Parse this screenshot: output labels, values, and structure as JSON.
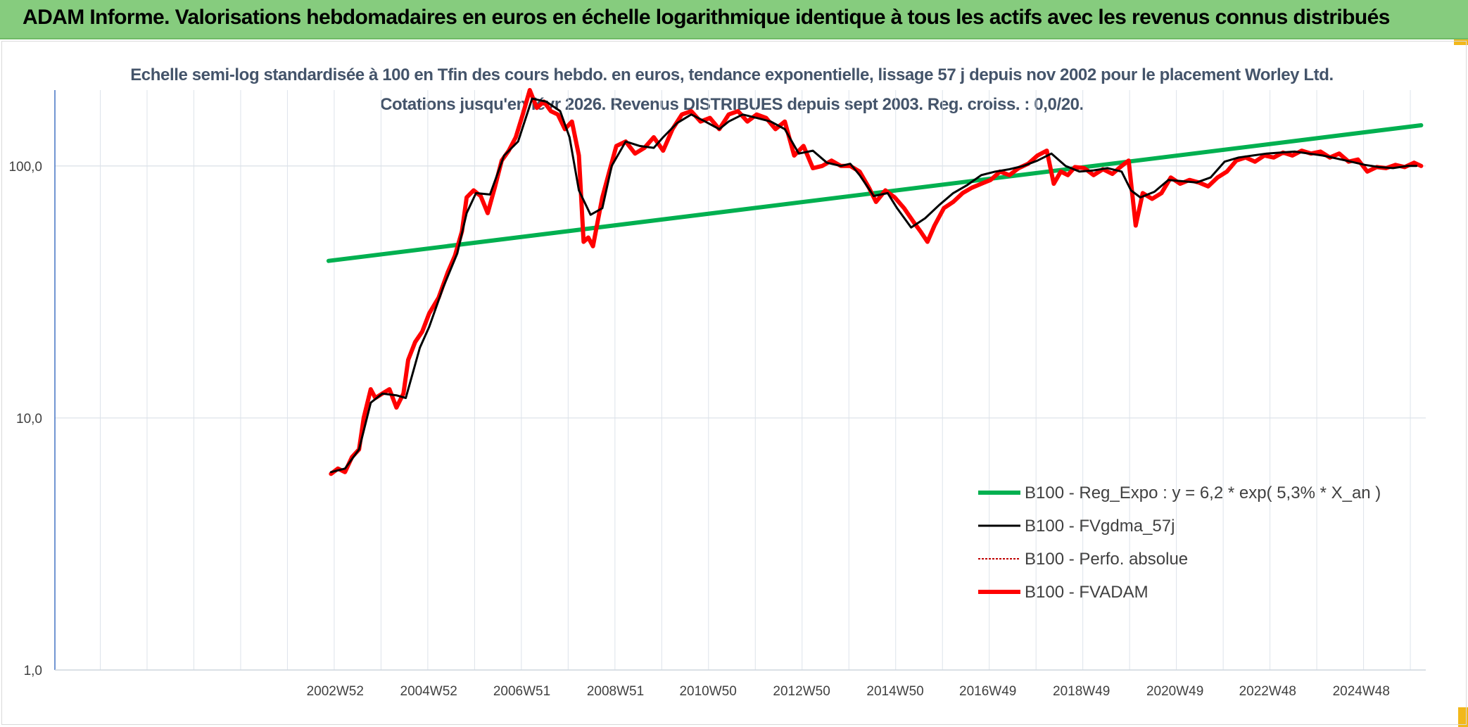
{
  "header": {
    "title": "ADAM Informe. Valorisations hebdomadaires en euros en échelle logarithmique identique à tous les actifs avec les revenus connus distribués"
  },
  "chart_data": {
    "type": "line",
    "title": "Echelle semi-log standardisée à 100 en Tfin des cours hebdo. en euros, tendance exponentielle, lissage 57 j depuis nov 2002 pour le placement Worley Ltd. Cotations jusqu'en févr 2026. Revenus DISTRIBUES depuis sept 2003. Reg. croiss. : 0,0/20.",
    "y_scale": "log",
    "ylim": [
      1,
      200
    ],
    "y_ticks": [
      "1,0",
      "10,0",
      "100,0"
    ],
    "y_tick_values": [
      1,
      10,
      100
    ],
    "x_tick_labels": [
      "2002W52",
      "2004W52",
      "2006W51",
      "2008W51",
      "2010W50",
      "2012W50",
      "2014W50",
      "2016W49",
      "2018W49",
      "2020W49",
      "2022W48",
      "2024W48"
    ],
    "x_tick_years": [
      2002.99,
      2004.99,
      2006.98,
      2008.98,
      2010.96,
      2012.96,
      2014.96,
      2016.94,
      2018.94,
      2020.94,
      2022.92,
      2024.92
    ],
    "xlim": [
      1997.0,
      2026.3
    ],
    "grid": true,
    "legend_position": "lower-right",
    "series": [
      {
        "name": "B100 - Reg_Expo : y = 6,2 * exp( 5,3% *  X_an )",
        "color": "#00b050",
        "style": "solid-thick",
        "x": [
          2002.85,
          2026.2
        ],
        "y": [
          42,
          145
        ]
      },
      {
        "name": "B100 - FVgdma_57j",
        "color": "#000000",
        "style": "solid",
        "x": [
          2002.9,
          2003.2,
          2003.5,
          2003.75,
          2004.0,
          2004.3,
          2004.5,
          2004.8,
          2005.0,
          2005.3,
          2005.6,
          2005.8,
          2006.0,
          2006.3,
          2006.6,
          2006.9,
          2007.2,
          2007.5,
          2007.8,
          2008.0,
          2008.2,
          2008.45,
          2008.7,
          2008.9,
          2009.2,
          2009.5,
          2009.8,
          2010.0,
          2010.3,
          2010.6,
          2010.9,
          2011.2,
          2011.4,
          2011.7,
          2012.0,
          2012.3,
          2012.6,
          2012.9,
          2013.2,
          2013.5,
          2013.8,
          2014.0,
          2014.2,
          2014.5,
          2014.8,
          2015.0,
          2015.3,
          2015.6,
          2015.9,
          2016.2,
          2016.5,
          2016.8,
          2017.1,
          2017.4,
          2017.7,
          2018.0,
          2018.3,
          2018.6,
          2018.9,
          2019.2,
          2019.5,
          2019.8,
          2020.0,
          2020.2,
          2020.5,
          2020.8,
          2021.1,
          2021.4,
          2021.7,
          2022.0,
          2022.3,
          2022.6,
          2022.9,
          2023.2,
          2023.5,
          2023.8,
          2024.1,
          2024.4,
          2024.7,
          2025.0,
          2025.3,
          2025.6,
          2025.9,
          2026.1
        ],
        "y": [
          6.1,
          6.3,
          7.5,
          11.5,
          12.5,
          12.3,
          12.0,
          19.0,
          23.0,
          33.0,
          45.0,
          65.0,
          78.0,
          77.0,
          110.0,
          125.0,
          185.0,
          180.0,
          165.0,
          130.0,
          80.0,
          64.0,
          68.0,
          100.0,
          125.0,
          120.0,
          118.0,
          130.0,
          148.0,
          160.0,
          150.0,
          140.0,
          150.0,
          160.0,
          155.0,
          150.0,
          140.0,
          112.0,
          115.0,
          103.0,
          100.0,
          102.0,
          92.0,
          76.0,
          78.0,
          68.0,
          57.0,
          62.0,
          70.0,
          78.0,
          84.0,
          92.0,
          95.0,
          97.0,
          100.0,
          105.0,
          112.0,
          100.0,
          95.0,
          96.0,
          98.0,
          95.0,
          80.0,
          75.0,
          79.0,
          88.0,
          87.0,
          86.0,
          90.0,
          104.0,
          108.0,
          110.0,
          112.0,
          113.0,
          114.0,
          112.0,
          110.0,
          107.0,
          104.0,
          101.0,
          99.0,
          98.0,
          100.0,
          100.0
        ]
      },
      {
        "name": "B100 - Perfo. absolue",
        "color": "#c00000",
        "style": "dotted",
        "x": [],
        "y": []
      },
      {
        "name": "B100 - FVADAM",
        "color": "#ff0000",
        "style": "solid-thick",
        "x": [
          2002.9,
          2003.05,
          2003.2,
          2003.35,
          2003.5,
          2003.6,
          2003.75,
          2003.85,
          2004.0,
          2004.15,
          2004.3,
          2004.45,
          2004.55,
          2004.7,
          2004.85,
          2005.0,
          2005.2,
          2005.4,
          2005.55,
          2005.7,
          2005.8,
          2005.95,
          2006.1,
          2006.25,
          2006.4,
          2006.55,
          2006.7,
          2006.85,
          2007.0,
          2007.15,
          2007.3,
          2007.45,
          2007.6,
          2007.75,
          2007.9,
          2008.05,
          2008.2,
          2008.3,
          2008.4,
          2008.5,
          2008.6,
          2008.7,
          2008.85,
          2009.0,
          2009.2,
          2009.4,
          2009.6,
          2009.8,
          2010.0,
          2010.2,
          2010.4,
          2010.6,
          2010.8,
          2011.0,
          2011.2,
          2011.4,
          2011.6,
          2011.8,
          2012.0,
          2012.2,
          2012.4,
          2012.6,
          2012.8,
          2013.0,
          2013.2,
          2013.4,
          2013.6,
          2013.8,
          2014.0,
          2014.2,
          2014.4,
          2014.55,
          2014.75,
          2014.95,
          2015.15,
          2015.35,
          2015.5,
          2015.65,
          2015.8,
          2016.0,
          2016.2,
          2016.4,
          2016.6,
          2016.8,
          2017.0,
          2017.2,
          2017.4,
          2017.6,
          2017.8,
          2018.0,
          2018.2,
          2018.35,
          2018.5,
          2018.65,
          2018.8,
          2019.0,
          2019.2,
          2019.4,
          2019.6,
          2019.8,
          2019.95,
          2020.1,
          2020.25,
          2020.45,
          2020.65,
          2020.85,
          2021.05,
          2021.25,
          2021.45,
          2021.65,
          2021.85,
          2022.05,
          2022.25,
          2022.45,
          2022.65,
          2022.85,
          2023.05,
          2023.25,
          2023.45,
          2023.65,
          2023.85,
          2024.05,
          2024.25,
          2024.45,
          2024.65,
          2024.85,
          2025.05,
          2025.25,
          2025.45,
          2025.65,
          2025.85,
          2026.05,
          2026.2
        ],
        "y": [
          6.0,
          6.3,
          6.1,
          7.0,
          7.5,
          10.0,
          13.0,
          12.0,
          12.5,
          13.0,
          11.0,
          12.5,
          17.0,
          20.0,
          22.0,
          26.0,
          30.0,
          38.0,
          44.0,
          55.0,
          75.0,
          80.0,
          76.0,
          65.0,
          82.0,
          105.0,
          115.0,
          130.0,
          160.0,
          200.0,
          170.0,
          180.0,
          165.0,
          160.0,
          140.0,
          150.0,
          110.0,
          50.0,
          52.0,
          48.0,
          60.0,
          75.0,
          95.0,
          120.0,
          125.0,
          112.0,
          118.0,
          130.0,
          115.0,
          140.0,
          160.0,
          165.0,
          150.0,
          155.0,
          140.0,
          160.0,
          165.0,
          150.0,
          160.0,
          155.0,
          140.0,
          150.0,
          110.0,
          120.0,
          98.0,
          100.0,
          105.0,
          100.0,
          100.0,
          95.0,
          82.0,
          72.0,
          80.0,
          75.0,
          68.0,
          60.0,
          55.0,
          50.0,
          58.0,
          68.0,
          72.0,
          78.0,
          82.0,
          85.0,
          88.0,
          95.0,
          92.0,
          98.0,
          102.0,
          110.0,
          115.0,
          85.0,
          95.0,
          92.0,
          99.0,
          98.0,
          92.0,
          97.0,
          93.0,
          100.0,
          105.0,
          58.0,
          78.0,
          74.0,
          78.0,
          90.0,
          85.0,
          88.0,
          86.0,
          83.0,
          90.0,
          95.0,
          105.0,
          108.0,
          104.0,
          110.0,
          108.0,
          113.0,
          110.0,
          115.0,
          112.0,
          114.0,
          108.0,
          112.0,
          104.0,
          106.0,
          95.0,
          99.0,
          98.0,
          101.0,
          99.0,
          103.0,
          100.0
        ]
      }
    ]
  }
}
